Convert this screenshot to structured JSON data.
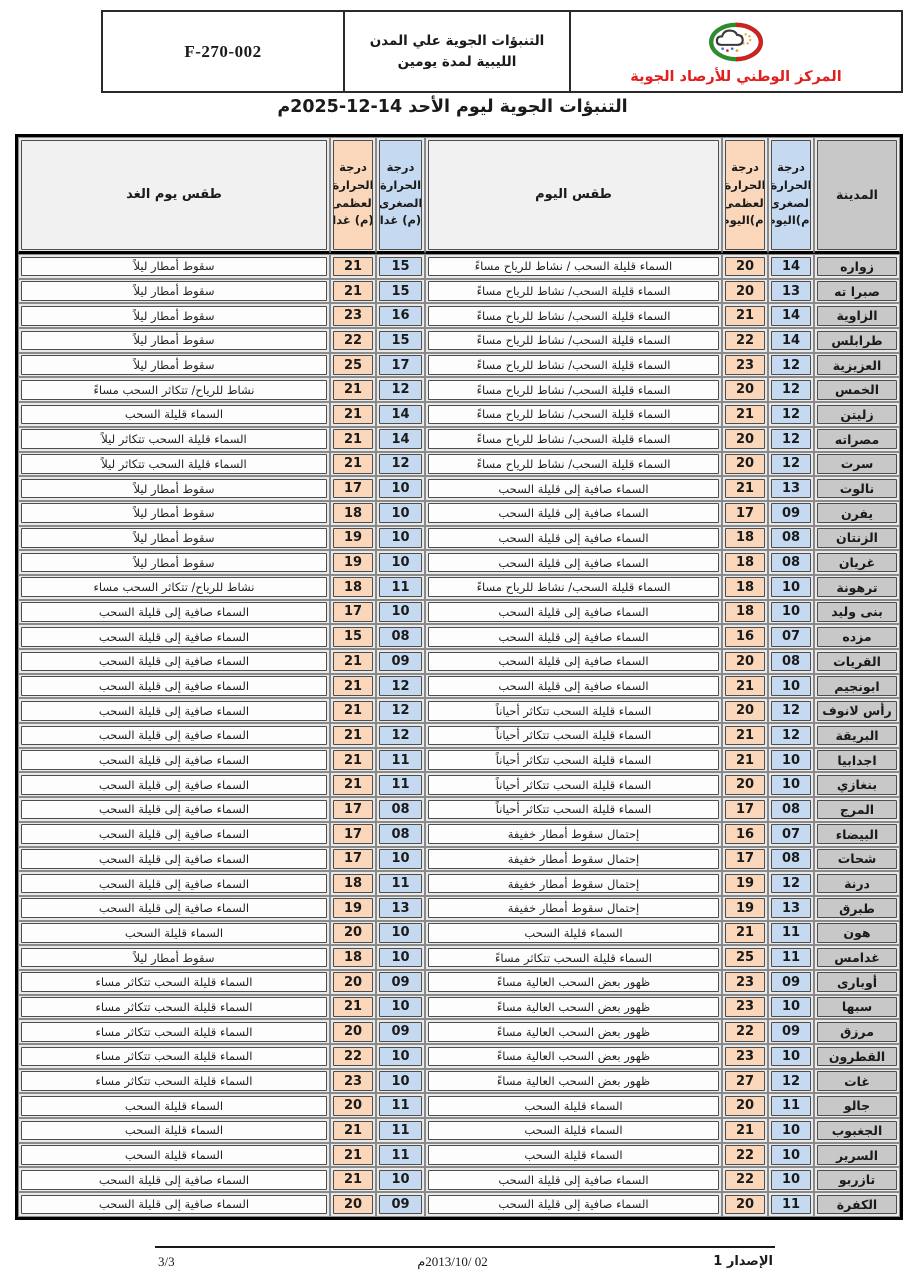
{
  "form_header": {
    "form_number": "F-270-002",
    "doc_title": "التنبؤات الجوية علي المدن الليبية لمدة يومين",
    "org_name": "المركز الوطني للأرصاد الجوية",
    "logo_icon": "weather-center-logo"
  },
  "page_title": "التنبؤات الجوية ليوم الأحد 14-12-2025م",
  "table": {
    "headers": {
      "city": "المدينة",
      "min_today": "درجة الحرارة الصغرى (م)اليوم",
      "max_today": "درجة الحرارة العظمى (م)اليوم",
      "weather_today": "طقس اليوم",
      "min_tomorrow": "درجة الحرارة الصغرى (م) غدا",
      "max_tomorrow": "درجة الحرارة العظمى (م) غدا",
      "weather_tomorrow": "طقس يوم الغد"
    },
    "rows": [
      {
        "city": "زواره",
        "min_today": "14",
        "max_today": "20",
        "weather_today": "السماء قليلة السحب / نشاط للرياح مساءً",
        "min_tomorrow": "15",
        "max_tomorrow": "21",
        "weather_tomorrow": "سقوط أمطار ليلاً"
      },
      {
        "city": "صبرا ته",
        "min_today": "13",
        "max_today": "20",
        "weather_today": "السماء قليلة السحب/ نشاط للرياح مساءً",
        "min_tomorrow": "15",
        "max_tomorrow": "21",
        "weather_tomorrow": "سقوط أمطار ليلاً"
      },
      {
        "city": "الزاوية",
        "min_today": "14",
        "max_today": "21",
        "weather_today": "السماء قليلة السحب/ نشاط للرياح مساءً",
        "min_tomorrow": "16",
        "max_tomorrow": "23",
        "weather_tomorrow": "سقوط أمطار ليلاً"
      },
      {
        "city": "طرابلس",
        "min_today": "14",
        "max_today": "22",
        "weather_today": "السماء قليلة السحب/ نشاط للرياح مساءً",
        "min_tomorrow": "15",
        "max_tomorrow": "22",
        "weather_tomorrow": "سقوط أمطار ليلاً"
      },
      {
        "city": "العزيزية",
        "min_today": "12",
        "max_today": "23",
        "weather_today": "السماء قليلة السحب/ نشاط للرياح مساءً",
        "min_tomorrow": "17",
        "max_tomorrow": "25",
        "weather_tomorrow": "سقوط أمطار ليلاً"
      },
      {
        "city": "الخمس",
        "min_today": "12",
        "max_today": "20",
        "weather_today": "السماء قليلة السحب/ نشاط للرياح مساءً",
        "min_tomorrow": "12",
        "max_tomorrow": "21",
        "weather_tomorrow": "نشاط للرياح/ تتكاثر السحب مساءً"
      },
      {
        "city": "زليتن",
        "min_today": "12",
        "max_today": "21",
        "weather_today": "السماء قليلة السحب/ نشاط للرياح مساءً",
        "min_tomorrow": "14",
        "max_tomorrow": "21",
        "weather_tomorrow": "السماء قليلة السحب"
      },
      {
        "city": "مصراته",
        "min_today": "12",
        "max_today": "20",
        "weather_today": "السماء قليلة السحب/ نشاط للرياح مساءً",
        "min_tomorrow": "14",
        "max_tomorrow": "21",
        "weather_tomorrow": "السماء قليلة السحب تتكاثر ليلاً"
      },
      {
        "city": "سرت",
        "min_today": "12",
        "max_today": "20",
        "weather_today": "السماء قليلة السحب/ نشاط للرياح مساءً",
        "min_tomorrow": "12",
        "max_tomorrow": "21",
        "weather_tomorrow": "السماء قليلة السحب تتكاثر ليلاً"
      },
      {
        "city": "نالوت",
        "min_today": "13",
        "max_today": "21",
        "weather_today": "السماء صافية إلى قليلة السحب",
        "min_tomorrow": "10",
        "max_tomorrow": "17",
        "weather_tomorrow": "سقوط أمطار ليلاً"
      },
      {
        "city": "يفرن",
        "min_today": "09",
        "max_today": "17",
        "weather_today": "السماء صافية إلى قليلة السحب",
        "min_tomorrow": "10",
        "max_tomorrow": "18",
        "weather_tomorrow": "سقوط أمطار ليلاً"
      },
      {
        "city": "الزنتان",
        "min_today": "08",
        "max_today": "18",
        "weather_today": "السماء صافية إلى قليلة السحب",
        "min_tomorrow": "10",
        "max_tomorrow": "19",
        "weather_tomorrow": "سقوط أمطار ليلاً"
      },
      {
        "city": "غريان",
        "min_today": "08",
        "max_today": "18",
        "weather_today": "السماء صافية إلى قليلة السحب",
        "min_tomorrow": "10",
        "max_tomorrow": "19",
        "weather_tomorrow": "سقوط أمطار ليلاً"
      },
      {
        "city": "ترهونة",
        "min_today": "10",
        "max_today": "18",
        "weather_today": "السماء قليلة السحب/ نشاط للرياح مساءً",
        "min_tomorrow": "11",
        "max_tomorrow": "18",
        "weather_tomorrow": "نشاط للرياح/ تتكاثر السحب مساء"
      },
      {
        "city": "بنى وليد",
        "min_today": "10",
        "max_today": "18",
        "weather_today": "السماء صافية إلى قليلة السحب",
        "min_tomorrow": "10",
        "max_tomorrow": "17",
        "weather_tomorrow": "السماء صافية إلى قليلة السحب"
      },
      {
        "city": "مزده",
        "min_today": "07",
        "max_today": "16",
        "weather_today": "السماء صافية إلى قليلة السحب",
        "min_tomorrow": "08",
        "max_tomorrow": "15",
        "weather_tomorrow": "السماء صافية إلى قليلة السحب"
      },
      {
        "city": "القريات",
        "min_today": "08",
        "max_today": "20",
        "weather_today": "السماء صافية إلى قليلة السحب",
        "min_tomorrow": "09",
        "max_tomorrow": "21",
        "weather_tomorrow": "السماء صافية إلى قليلة السحب"
      },
      {
        "city": "ابونجيم",
        "min_today": "10",
        "max_today": "21",
        "weather_today": "السماء صافية إلى قليلة السحب",
        "min_tomorrow": "12",
        "max_tomorrow": "21",
        "weather_tomorrow": "السماء صافية إلى قليلة السحب"
      },
      {
        "city": "رأس لانوف",
        "min_today": "12",
        "max_today": "20",
        "weather_today": "السماء قليلة السحب تتكاثر أحياناً",
        "min_tomorrow": "12",
        "max_tomorrow": "21",
        "weather_tomorrow": "السماء صافية إلى قليلة السحب"
      },
      {
        "city": "البريقة",
        "min_today": "12",
        "max_today": "21",
        "weather_today": "السماء قليلة السحب تتكاثر أحياناً",
        "min_tomorrow": "12",
        "max_tomorrow": "21",
        "weather_tomorrow": "السماء صافية إلى قليلة السحب"
      },
      {
        "city": "اجدابيا",
        "min_today": "10",
        "max_today": "21",
        "weather_today": "السماء قليلة السحب تتكاثر أحياناً",
        "min_tomorrow": "11",
        "max_tomorrow": "21",
        "weather_tomorrow": "السماء صافية إلى قليلة السحب"
      },
      {
        "city": "بنغازي",
        "min_today": "10",
        "max_today": "20",
        "weather_today": "السماء قليلة السحب تتكاثر أحياناً",
        "min_tomorrow": "11",
        "max_tomorrow": "21",
        "weather_tomorrow": "السماء صافية إلى قليلة السحب"
      },
      {
        "city": "المرج",
        "min_today": "08",
        "max_today": "17",
        "weather_today": "السماء قليلة السحب تتكاثر أحياناً",
        "min_tomorrow": "08",
        "max_tomorrow": "17",
        "weather_tomorrow": "السماء صافية إلى قليلة السحب"
      },
      {
        "city": "البيضاء",
        "min_today": "07",
        "max_today": "16",
        "weather_today": "إحتمال سقوط أمطار خفيفة",
        "min_tomorrow": "08",
        "max_tomorrow": "17",
        "weather_tomorrow": "السماء صافية إلى قليلة السحب"
      },
      {
        "city": "شحات",
        "min_today": "08",
        "max_today": "17",
        "weather_today": "إحتمال سقوط أمطار خفيفة",
        "min_tomorrow": "10",
        "max_tomorrow": "17",
        "weather_tomorrow": "السماء صافية إلى قليلة السحب"
      },
      {
        "city": "درنة",
        "min_today": "12",
        "max_today": "19",
        "weather_today": "إحتمال سقوط أمطار خفيفة",
        "min_tomorrow": "11",
        "max_tomorrow": "18",
        "weather_tomorrow": "السماء صافية إلى قليلة السحب"
      },
      {
        "city": "طبرق",
        "min_today": "13",
        "max_today": "19",
        "weather_today": "إحتمال سقوط أمطار خفيفة",
        "min_tomorrow": "13",
        "max_tomorrow": "19",
        "weather_tomorrow": "السماء صافية إلى قليلة السحب"
      },
      {
        "city": "هون",
        "min_today": "11",
        "max_today": "21",
        "weather_today": "السماء قليلة السحب",
        "min_tomorrow": "10",
        "max_tomorrow": "20",
        "weather_tomorrow": "السماء قليلة السحب"
      },
      {
        "city": "غدامس",
        "min_today": "11",
        "max_today": "25",
        "weather_today": "السماء قليلة السحب تتكاثر  مساءً",
        "min_tomorrow": "10",
        "max_tomorrow": "18",
        "weather_tomorrow": "سقوط أمطار ليلاً"
      },
      {
        "city": "أوبارى",
        "min_today": "09",
        "max_today": "23",
        "weather_today": "ظهور بعض السحب العالية مساءً",
        "min_tomorrow": "09",
        "max_tomorrow": "20",
        "weather_tomorrow": "السماء قليلة السحب تتكاثر  مساء"
      },
      {
        "city": "سبها",
        "min_today": "10",
        "max_today": "23",
        "weather_today": "ظهور بعض السحب العالية مساءً",
        "min_tomorrow": "10",
        "max_tomorrow": "21",
        "weather_tomorrow": "السماء قليلة السحب تتكاثر  مساء"
      },
      {
        "city": "مرزق",
        "min_today": "09",
        "max_today": "22",
        "weather_today": "ظهور بعض السحب العالية مساءً",
        "min_tomorrow": "09",
        "max_tomorrow": "20",
        "weather_tomorrow": "السماء قليلة السحب تتكاثر  مساء"
      },
      {
        "city": "القطرون",
        "min_today": "10",
        "max_today": "23",
        "weather_today": "ظهور بعض السحب العالية مساءً",
        "min_tomorrow": "10",
        "max_tomorrow": "22",
        "weather_tomorrow": "السماء قليلة السحب تتكاثر  مساء"
      },
      {
        "city": "غات",
        "min_today": "12",
        "max_today": "27",
        "weather_today": "ظهور بعض السحب العالية مساءً",
        "min_tomorrow": "10",
        "max_tomorrow": "23",
        "weather_tomorrow": "السماء قليلة السحب تتكاثر  مساء"
      },
      {
        "city": "جالو",
        "min_today": "11",
        "max_today": "20",
        "weather_today": "السماء قليلة السحب",
        "min_tomorrow": "11",
        "max_tomorrow": "20",
        "weather_tomorrow": "السماء قليلة السحب"
      },
      {
        "city": "الجغبوب",
        "min_today": "10",
        "max_today": "21",
        "weather_today": "السماء قليلة السحب",
        "min_tomorrow": "11",
        "max_tomorrow": "21",
        "weather_tomorrow": "السماء قليلة السحب"
      },
      {
        "city": "السرير",
        "min_today": "10",
        "max_today": "22",
        "weather_today": "السماء قليلة السحب",
        "min_tomorrow": "11",
        "max_tomorrow": "21",
        "weather_tomorrow": "السماء قليلة السحب"
      },
      {
        "city": "تازربو",
        "min_today": "10",
        "max_today": "22",
        "weather_today": "السماء صافية إلى قليلة السحب",
        "min_tomorrow": "10",
        "max_tomorrow": "21",
        "weather_tomorrow": "السماء صافية إلى قليلة السحب"
      },
      {
        "city": "الكفرة",
        "min_today": "11",
        "max_today": "20",
        "weather_today": "السماء صافية إلى قليلة السحب",
        "min_tomorrow": "09",
        "max_tomorrow": "20",
        "weather_tomorrow": "السماء صافية إلى قليلة السحب"
      }
    ]
  },
  "footer": {
    "version": "الإصدار 1",
    "date": "02 /2013/10م",
    "page_number": "3/3"
  },
  "colors": {
    "max_temp_bg": "#fad7ba",
    "min_temp_bg": "#c5d9f0",
    "city_bg": "#c8c8c8",
    "row_bg": "#e9e9e9",
    "org_name_red": "#e02020",
    "logo_green": "#2e8b2e",
    "logo_red": "#cc2222"
  }
}
